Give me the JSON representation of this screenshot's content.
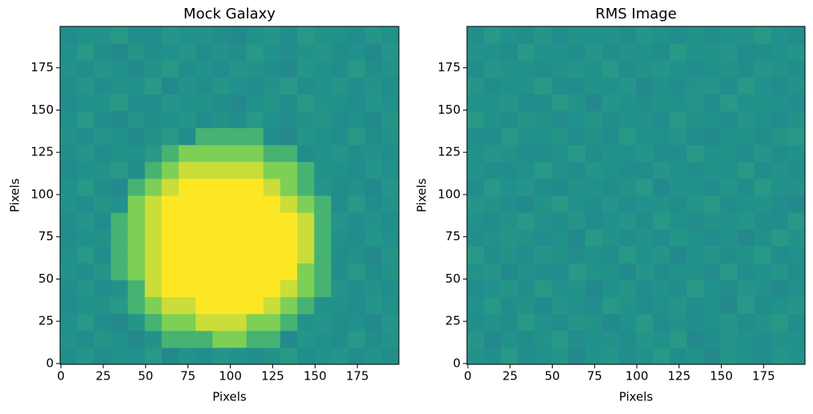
{
  "chart_data": [
    {
      "type": "heatmap",
      "title": "Mock Galaxy",
      "xlabel": "Pixels",
      "ylabel": "Pixels",
      "xlim": [
        -0.5,
        199.5
      ],
      "ylim": [
        -0.5,
        199.5
      ],
      "xticks": [
        0,
        25,
        50,
        75,
        100,
        125,
        150,
        175
      ],
      "yticks": [
        0,
        25,
        50,
        75,
        100,
        125,
        150,
        175
      ],
      "colormap": "viridis",
      "clim": [
        0,
        1
      ],
      "z": [
        [
          0.49,
          0.52,
          0.48,
          0.51,
          0.5,
          0.53,
          0.47,
          0.51,
          0.49,
          0.52,
          0.5,
          0.48,
          0.51,
          0.53,
          0.49,
          0.5,
          0.52,
          0.48,
          0.51,
          0.49
        ],
        [
          0.51,
          0.48,
          0.52,
          0.5,
          0.47,
          0.51,
          0.65,
          0.65,
          0.65,
          0.8,
          0.8,
          0.65,
          0.65,
          0.47,
          0.52,
          0.5,
          0.48,
          0.53,
          0.49,
          0.51
        ],
        [
          0.5,
          0.53,
          0.49,
          0.47,
          0.52,
          0.65,
          0.8,
          0.8,
          0.92,
          0.92,
          0.92,
          0.8,
          0.8,
          0.65,
          0.51,
          0.52,
          0.49,
          0.5,
          0.47,
          0.52
        ],
        [
          0.48,
          0.5,
          0.51,
          0.53,
          0.65,
          0.8,
          0.92,
          0.92,
          1,
          1,
          1,
          1,
          0.92,
          0.8,
          0.65,
          0.51,
          0.5,
          0.48,
          0.52,
          0.5
        ],
        [
          0.49,
          0.52,
          0.48,
          0.51,
          0.65,
          0.92,
          1,
          1,
          1,
          1,
          1,
          1,
          1,
          0.92,
          0.8,
          0.65,
          0.52,
          0.48,
          0.51,
          0.49
        ],
        [
          0.51,
          0.48,
          0.52,
          0.65,
          0.8,
          0.92,
          1,
          1,
          1,
          1,
          1,
          1,
          1,
          1,
          0.8,
          0.65,
          0.48,
          0.53,
          0.49,
          0.51
        ],
        [
          0.5,
          0.53,
          0.49,
          0.65,
          0.8,
          0.92,
          1,
          1,
          1,
          1,
          1,
          1,
          1,
          1,
          0.92,
          0.65,
          0.49,
          0.5,
          0.47,
          0.52
        ],
        [
          0.48,
          0.5,
          0.51,
          0.65,
          0.8,
          0.92,
          1,
          1,
          1,
          1,
          1,
          1,
          1,
          1,
          0.92,
          0.65,
          0.5,
          0.48,
          0.52,
          0.5
        ],
        [
          0.49,
          0.52,
          0.48,
          0.65,
          0.8,
          0.92,
          1,
          1,
          1,
          1,
          1,
          1,
          1,
          1,
          0.92,
          0.65,
          0.52,
          0.48,
          0.51,
          0.49
        ],
        [
          0.51,
          0.48,
          0.52,
          0.5,
          0.8,
          0.92,
          1,
          1,
          1,
          1,
          1,
          1,
          1,
          0.92,
          0.8,
          0.65,
          0.48,
          0.53,
          0.49,
          0.51
        ],
        [
          0.5,
          0.53,
          0.49,
          0.47,
          0.65,
          0.8,
          0.92,
          1,
          1,
          1,
          1,
          1,
          0.92,
          0.8,
          0.65,
          0.52,
          0.49,
          0.5,
          0.47,
          0.52
        ],
        [
          0.48,
          0.5,
          0.51,
          0.53,
          0.49,
          0.65,
          0.8,
          0.92,
          0.92,
          0.92,
          0.92,
          0.92,
          0.8,
          0.8,
          0.65,
          0.51,
          0.5,
          0.48,
          0.52,
          0.5
        ],
        [
          0.49,
          0.52,
          0.48,
          0.51,
          0.5,
          0.53,
          0.65,
          0.8,
          0.8,
          0.8,
          0.8,
          0.8,
          0.65,
          0.65,
          0.49,
          0.5,
          0.52,
          0.48,
          0.51,
          0.49
        ],
        [
          0.51,
          0.48,
          0.52,
          0.5,
          0.47,
          0.51,
          0.53,
          0.49,
          0.65,
          0.65,
          0.65,
          0.65,
          0.49,
          0.47,
          0.52,
          0.5,
          0.48,
          0.53,
          0.49,
          0.51
        ],
        [
          0.5,
          0.53,
          0.49,
          0.47,
          0.52,
          0.49,
          0.5,
          0.52,
          0.48,
          0.51,
          0.49,
          0.53,
          0.5,
          0.48,
          0.51,
          0.52,
          0.49,
          0.5,
          0.47,
          0.52
        ],
        [
          0.48,
          0.5,
          0.51,
          0.53,
          0.49,
          0.48,
          0.52,
          0.5,
          0.51,
          0.49,
          0.47,
          0.5,
          0.52,
          0.49,
          0.53,
          0.51,
          0.5,
          0.48,
          0.52,
          0.5
        ],
        [
          0.49,
          0.52,
          0.48,
          0.51,
          0.5,
          0.53,
          0.47,
          0.51,
          0.49,
          0.52,
          0.5,
          0.48,
          0.51,
          0.53,
          0.49,
          0.5,
          0.52,
          0.48,
          0.51,
          0.49
        ],
        [
          0.51,
          0.48,
          0.52,
          0.5,
          0.47,
          0.51,
          0.53,
          0.49,
          0.5,
          0.48,
          0.52,
          0.51,
          0.49,
          0.47,
          0.52,
          0.5,
          0.48,
          0.53,
          0.49,
          0.51
        ],
        [
          0.5,
          0.53,
          0.49,
          0.47,
          0.52,
          0.49,
          0.5,
          0.52,
          0.48,
          0.51,
          0.49,
          0.53,
          0.5,
          0.48,
          0.51,
          0.52,
          0.49,
          0.5,
          0.47,
          0.52
        ],
        [
          0.48,
          0.5,
          0.51,
          0.53,
          0.49,
          0.48,
          0.52,
          0.5,
          0.51,
          0.49,
          0.47,
          0.5,
          0.52,
          0.49,
          0.53,
          0.51,
          0.5,
          0.48,
          0.52,
          0.5
        ]
      ]
    },
    {
      "type": "heatmap",
      "title": "RMS Image",
      "xlabel": "Pixels",
      "ylabel": "Pixels",
      "xlim": [
        -0.5,
        199.5
      ],
      "ylim": [
        -0.5,
        199.5
      ],
      "xticks": [
        0,
        25,
        50,
        75,
        100,
        125,
        150,
        175
      ],
      "yticks": [
        0,
        25,
        50,
        75,
        100,
        125,
        150,
        175
      ],
      "colormap": "viridis",
      "clim": [
        0,
        1
      ],
      "z": [
        [
          0.51,
          0.49,
          0.53,
          0.48,
          0.5,
          0.52,
          0.47,
          0.51,
          0.52,
          0.48,
          0.5,
          0.53,
          0.49,
          0.51,
          0.47,
          0.52,
          0.5,
          0.48,
          0.52,
          0.51
        ],
        [
          0.52,
          0.47,
          0.5,
          0.49,
          0.51,
          0.53,
          0.48,
          0.5,
          0.51,
          0.49,
          0.52,
          0.5,
          0.53,
          0.47,
          0.49,
          0.52,
          0.5,
          0.48,
          0.51,
          0.5
        ],
        [
          0.49,
          0.51,
          0.48,
          0.53,
          0.5,
          0.49,
          0.52,
          0.51,
          0.47,
          0.5,
          0.53,
          0.48,
          0.51,
          0.49,
          0.5,
          0.52,
          0.48,
          0.51,
          0.53,
          0.49
        ],
        [
          0.5,
          0.53,
          0.49,
          0.51,
          0.47,
          0.52,
          0.5,
          0.48,
          0.53,
          0.51,
          0.49,
          0.5,
          0.52,
          0.48,
          0.51,
          0.47,
          0.53,
          0.49,
          0.5,
          0.52
        ],
        [
          0.48,
          0.5,
          0.52,
          0.49,
          0.53,
          0.5,
          0.51,
          0.47,
          0.5,
          0.52,
          0.48,
          0.51,
          0.49,
          0.53,
          0.5,
          0.48,
          0.52,
          0.51,
          0.47,
          0.5
        ],
        [
          0.51,
          0.52,
          0.47,
          0.5,
          0.49,
          0.48,
          0.53,
          0.51,
          0.5,
          0.47,
          0.52,
          0.49,
          0.5,
          0.51,
          0.48,
          0.53,
          0.49,
          0.5,
          0.52,
          0.48
        ],
        [
          0.53,
          0.49,
          0.51,
          0.48,
          0.52,
          0.51,
          0.49,
          0.5,
          0.48,
          0.53,
          0.5,
          0.52,
          0.47,
          0.5,
          0.52,
          0.49,
          0.51,
          0.53,
          0.48,
          0.5
        ],
        [
          0.49,
          0.5,
          0.52,
          0.51,
          0.48,
          0.5,
          0.47,
          0.53,
          0.51,
          0.49,
          0.51,
          0.48,
          0.52,
          0.5,
          0.49,
          0.51,
          0.47,
          0.5,
          0.53,
          0.51
        ],
        [
          0.5,
          0.48,
          0.51,
          0.53,
          0.5,
          0.49,
          0.52,
          0.48,
          0.5,
          0.52,
          0.49,
          0.53,
          0.5,
          0.48,
          0.51,
          0.5,
          0.52,
          0.49,
          0.48,
          0.53
        ],
        [
          0.52,
          0.51,
          0.49,
          0.47,
          0.51,
          0.53,
          0.5,
          0.49,
          0.52,
          0.48,
          0.5,
          0.51,
          0.49,
          0.52,
          0.53,
          0.48,
          0.5,
          0.51,
          0.49,
          0.47
        ],
        [
          0.48,
          0.53,
          0.5,
          0.52,
          0.49,
          0.47,
          0.51,
          0.5,
          0.49,
          0.51,
          0.53,
          0.47,
          0.51,
          0.5,
          0.48,
          0.52,
          0.49,
          0.53,
          0.5,
          0.51
        ],
        [
          0.51,
          0.49,
          0.48,
          0.5,
          0.53,
          0.51,
          0.48,
          0.52,
          0.5,
          0.49,
          0.48,
          0.52,
          0.5,
          0.49,
          0.51,
          0.5,
          0.53,
          0.48,
          0.51,
          0.49
        ],
        [
          0.5,
          0.52,
          0.51,
          0.49,
          0.48,
          0.5,
          0.53,
          0.49,
          0.51,
          0.5,
          0.52,
          0.49,
          0.48,
          0.53,
          0.5,
          0.51,
          0.48,
          0.52,
          0.49,
          0.5
        ],
        [
          0.49,
          0.48,
          0.53,
          0.51,
          0.5,
          0.52,
          0.49,
          0.51,
          0.48,
          0.53,
          0.5,
          0.5,
          0.52,
          0.49,
          0.47,
          0.5,
          0.51,
          0.49,
          0.52,
          0.53
        ],
        [
          0.53,
          0.5,
          0.49,
          0.52,
          0.51,
          0.48,
          0.5,
          0.52,
          0.49,
          0.5,
          0.51,
          0.48,
          0.53,
          0.51,
          0.5,
          0.49,
          0.52,
          0.5,
          0.48,
          0.51
        ],
        [
          0.5,
          0.51,
          0.52,
          0.48,
          0.49,
          0.53,
          0.51,
          0.47,
          0.52,
          0.5,
          0.49,
          0.51,
          0.5,
          0.52,
          0.49,
          0.53,
          0.5,
          0.51,
          0.5,
          0.48
        ],
        [
          0.52,
          0.49,
          0.5,
          0.51,
          0.53,
          0.49,
          0.48,
          0.51,
          0.5,
          0.52,
          0.47,
          0.5,
          0.49,
          0.51,
          0.52,
          0.48,
          0.53,
          0.5,
          0.49,
          0.51
        ],
        [
          0.48,
          0.52,
          0.51,
          0.5,
          0.49,
          0.51,
          0.52,
          0.5,
          0.53,
          0.48,
          0.51,
          0.52,
          0.5,
          0.48,
          0.5,
          0.51,
          0.49,
          0.52,
          0.51,
          0.49
        ],
        [
          0.51,
          0.5,
          0.48,
          0.53,
          0.5,
          0.5,
          0.49,
          0.52,
          0.49,
          0.51,
          0.5,
          0.49,
          0.53,
          0.5,
          0.51,
          0.52,
          0.48,
          0.49,
          0.5,
          0.52
        ],
        [
          0.49,
          0.53,
          0.5,
          0.49,
          0.52,
          0.48,
          0.51,
          0.5,
          0.51,
          0.49,
          0.52,
          0.5,
          0.48,
          0.51,
          0.49,
          0.5,
          0.51,
          0.53,
          0.5,
          0.48
        ]
      ]
    }
  ]
}
